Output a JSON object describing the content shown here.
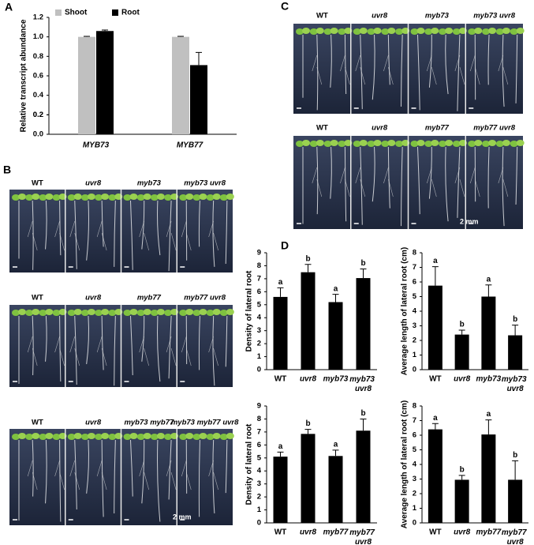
{
  "panels": {
    "A": "A",
    "B": "B",
    "C": "C",
    "D": "D"
  },
  "photos": {
    "B": {
      "rows": [
        {
          "labels": [
            "WT",
            "uvr8",
            "myb73",
            "myb73 uvr8"
          ]
        },
        {
          "labels": [
            "WT",
            "uvr8",
            "myb77",
            "myb77 uvr8"
          ]
        },
        {
          "labels": [
            "WT",
            "uvr8",
            "myb73 myb77",
            "myb73 myb77 uvr8"
          ]
        }
      ],
      "scale": "2 mm"
    },
    "C": {
      "rows": [
        {
          "labels": [
            "WT",
            "uvr8",
            "myb73",
            "myb73 uvr8"
          ]
        },
        {
          "labels": [
            "WT",
            "uvr8",
            "myb77",
            "myb77 uvr8"
          ]
        }
      ],
      "scale": "2 mm"
    }
  },
  "chart_data": [
    {
      "type": "bar",
      "ylabel": "Relative transcript abundance",
      "categories": [
        "MYB73",
        "MYB77"
      ],
      "series": [
        {
          "name": "Shoot",
          "color": "#c0c0c0",
          "values": [
            1.0,
            1.0
          ],
          "errors": [
            0.005,
            0.005
          ]
        },
        {
          "name": "Root",
          "color": "#000000",
          "values": [
            1.06,
            0.71
          ],
          "errors": [
            0.01,
            0.13
          ]
        }
      ],
      "ylim": [
        0,
        1.2
      ],
      "yticks": [
        {
          "value": 0,
          "label": "0.0"
        },
        0.2,
        0.4,
        0.6,
        0.8,
        {
          "value": 1,
          "label": "1.0"
        },
        0.2,
        1.2
      ],
      "legend": "top-left"
    },
    {
      "type": "bar",
      "ylabel": "Density of lateral root",
      "categories": [
        "WT",
        "uvr8",
        "myb73",
        "myb73 uvr8"
      ],
      "series": [
        {
          "color": "#000000",
          "values": [
            5.6,
            7.5,
            5.2,
            7.05
          ],
          "errors": [
            0.7,
            0.6,
            0.6,
            0.7
          ]
        }
      ],
      "annotations": [
        "a",
        "b",
        "a",
        "b"
      ],
      "ylim": [
        0,
        9
      ],
      "yticks": [
        0,
        1,
        2,
        3,
        4,
        5,
        6,
        7,
        8,
        9
      ]
    },
    {
      "type": "bar",
      "ylabel": "Average length of lateral root (cm)",
      "categories": [
        "WT",
        "uvr8",
        "myb73",
        "myb73 uvr8"
      ],
      "series": [
        {
          "color": "#000000",
          "values": [
            5.75,
            2.4,
            5.0,
            2.35
          ],
          "errors": [
            1.3,
            0.3,
            0.8,
            0.7
          ]
        }
      ],
      "annotations": [
        "a",
        "b",
        "a",
        "b"
      ],
      "ylim": [
        0,
        8
      ],
      "yticks": [
        0,
        1,
        2,
        3,
        4,
        5,
        6,
        7,
        8
      ]
    },
    {
      "type": "bar",
      "ylabel": "Density of lateral root",
      "categories": [
        "WT",
        "uvr8",
        "myb77",
        "myb77 uvr8"
      ],
      "series": [
        {
          "color": "#000000",
          "values": [
            5.1,
            6.85,
            5.15,
            7.1
          ],
          "errors": [
            0.35,
            0.35,
            0.45,
            0.9
          ]
        }
      ],
      "annotations": [
        "a",
        "b",
        "a",
        "b"
      ],
      "ylim": [
        0,
        9
      ],
      "yticks": [
        0,
        1,
        2,
        3,
        4,
        5,
        6,
        7,
        8,
        9
      ]
    },
    {
      "type": "bar",
      "ylabel": "Average length of lateral root (cm)",
      "categories": [
        "WT",
        "uvr8",
        "myb77",
        "myb77 uvr8"
      ],
      "series": [
        {
          "color": "#000000",
          "values": [
            6.4,
            2.95,
            6.05,
            2.95
          ],
          "errors": [
            0.4,
            0.3,
            1.0,
            1.3
          ]
        }
      ],
      "annotations": [
        "a",
        "b",
        "a",
        "b"
      ],
      "ylim": [
        0,
        8
      ],
      "yticks": [
        0,
        1,
        2,
        3,
        4,
        5,
        6,
        7,
        8
      ]
    }
  ]
}
